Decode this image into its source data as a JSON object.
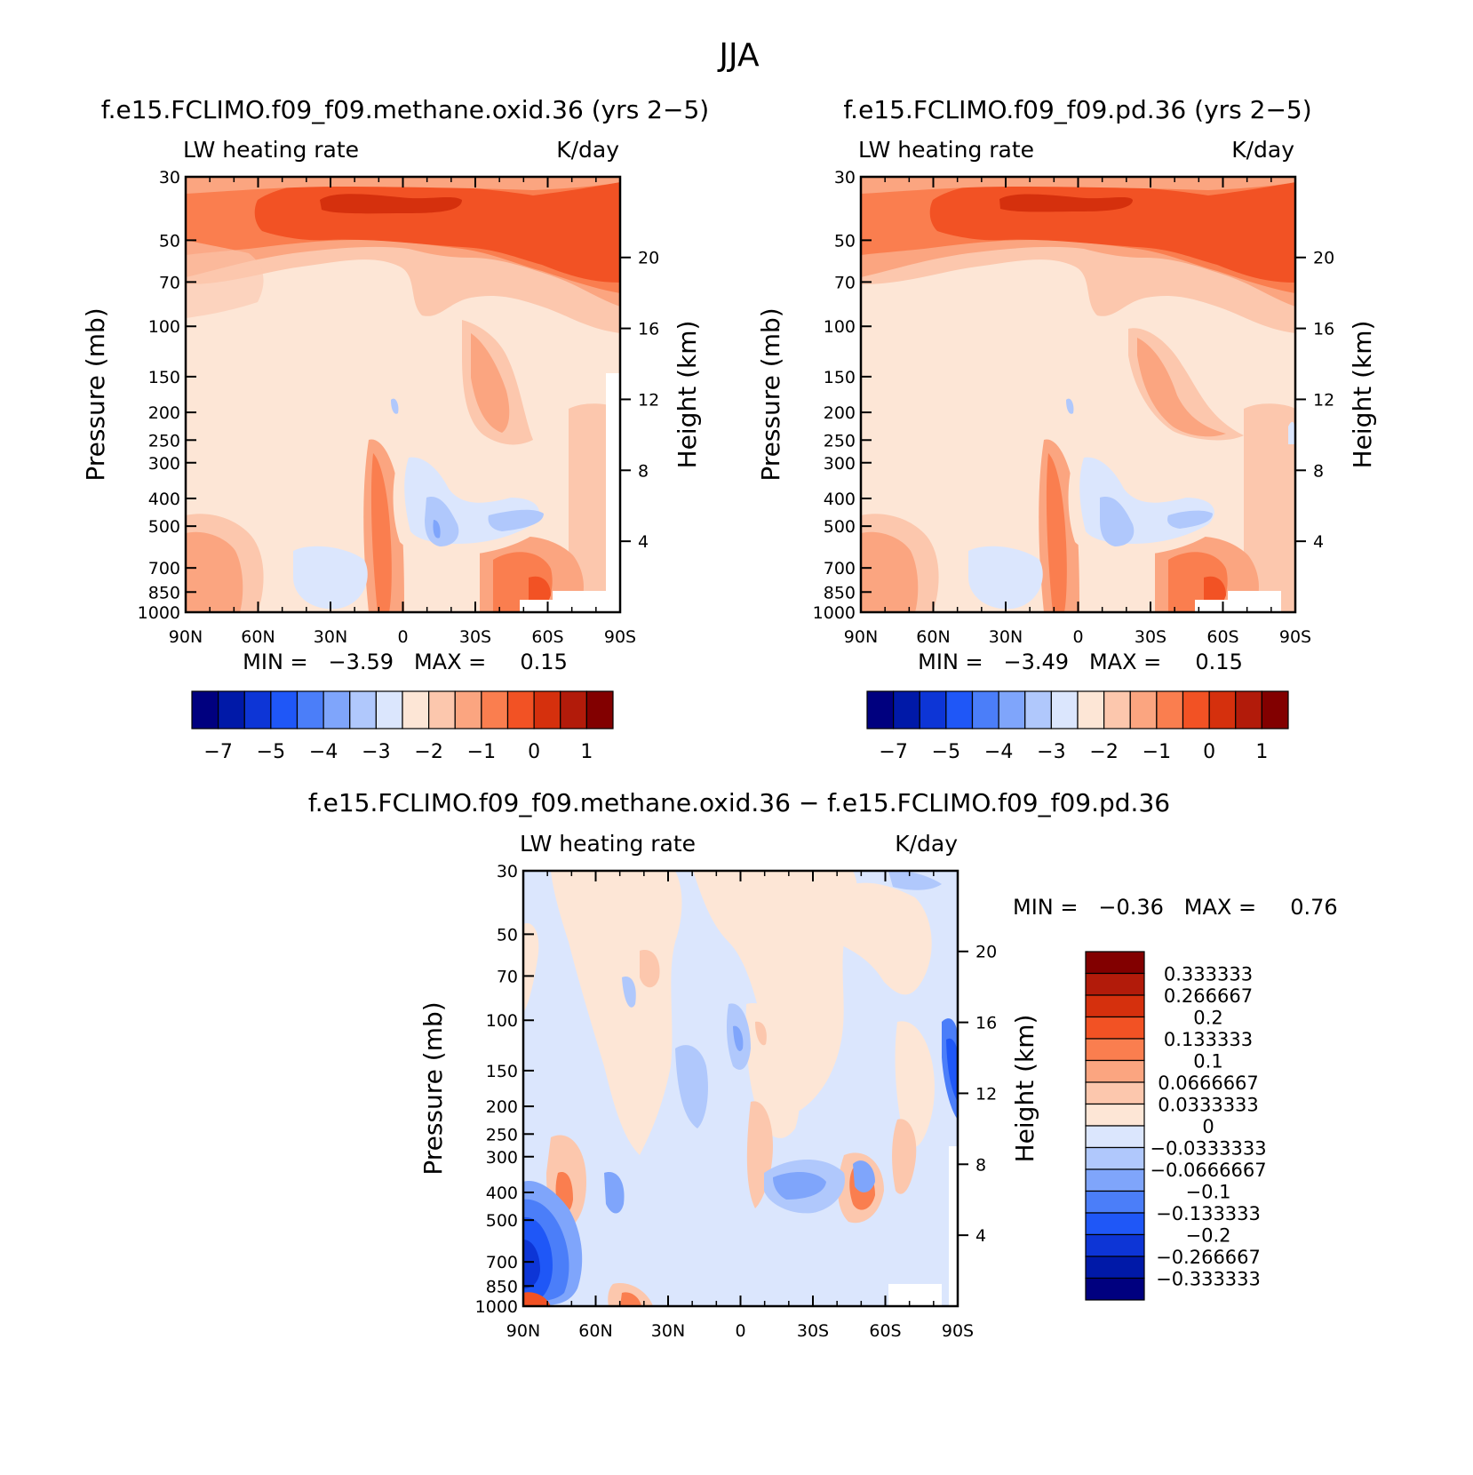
{
  "figure_title": "JJA",
  "chart_data": [
    {
      "type": "heatmap",
      "id": "p1",
      "title": "f.e15.FCLIMO.f09_f09.methane.oxid.36 (yrs 2-5)",
      "title_display": "f.e15.FCLIMO.f09_f09.methane.oxid.36 (yrs 2−5)",
      "variable": "LW heating rate",
      "units": "K/day",
      "xlabel": "",
      "ylabel": "Pressure (mb)",
      "y2label": "Height (km)",
      "x_ticks": [
        "90N",
        "60N",
        "30N",
        "0",
        "30S",
        "60S",
        "90S"
      ],
      "y_ticks": [
        30,
        50,
        70,
        100,
        150,
        200,
        250,
        300,
        400,
        500,
        700,
        850,
        1000
      ],
      "y2_ticks": [
        20,
        16,
        12,
        8,
        4
      ],
      "ylim": [
        1000,
        30
      ],
      "stats_text": "MIN =   −3.59   MAX =     0.15",
      "min": -3.59,
      "max": 0.15,
      "colorbar_labels": [
        "−7",
        "−5",
        "−4",
        "−3",
        "−2",
        "−1",
        "0",
        "1"
      ],
      "colorbar_colors": [
        "#00007f",
        "#0019a8",
        "#0d35d6",
        "#1f57f7",
        "#4b7ef9",
        "#7fa5fb",
        "#b0c8fc",
        "#dbe6fd",
        "#fde6d6",
        "#fcc7ad",
        "#fba580",
        "#fa7e4f",
        "#f25224",
        "#d5300d",
        "#b21b0a",
        "#820000"
      ]
    },
    {
      "type": "heatmap",
      "id": "p2",
      "title": "f.e15.FCLIMO.f09_f09.pd.36 (yrs 2-5)",
      "title_display": "f.e15.FCLIMO.f09_f09.pd.36 (yrs 2−5)",
      "variable": "LW heating rate",
      "units": "K/day",
      "ylabel": "Pressure (mb)",
      "y2label": "Height (km)",
      "x_ticks": [
        "90N",
        "60N",
        "30N",
        "0",
        "30S",
        "60S",
        "90S"
      ],
      "y_ticks": [
        30,
        50,
        70,
        100,
        150,
        200,
        250,
        300,
        400,
        500,
        700,
        850,
        1000
      ],
      "y2_ticks": [
        20,
        16,
        12,
        8,
        4
      ],
      "ylim": [
        1000,
        30
      ],
      "stats_text": "MIN =   −3.49   MAX =     0.15",
      "min": -3.49,
      "max": 0.15,
      "colorbar_labels": [
        "−7",
        "−5",
        "−4",
        "−3",
        "−2",
        "−1",
        "0",
        "1"
      ],
      "colorbar_colors": [
        "#00007f",
        "#0019a8",
        "#0d35d6",
        "#1f57f7",
        "#4b7ef9",
        "#7fa5fb",
        "#b0c8fc",
        "#dbe6fd",
        "#fde6d6",
        "#fcc7ad",
        "#fba580",
        "#fa7e4f",
        "#f25224",
        "#d5300d",
        "#b21b0a",
        "#820000"
      ]
    },
    {
      "type": "heatmap",
      "id": "p3",
      "title": "f.e15.FCLIMO.f09_f09.methane.oxid.36 - f.e15.FCLIMO.f09_f09.pd.36",
      "title_display": "f.e15.FCLIMO.f09_f09.methane.oxid.36 − f.e15.FCLIMO.f09_f09.pd.36",
      "variable": "LW heating rate",
      "units": "K/day",
      "ylabel": "Pressure (mb)",
      "y2label": "Height (km)",
      "x_ticks": [
        "90N",
        "60N",
        "30N",
        "0",
        "30S",
        "60S",
        "90S"
      ],
      "y_ticks": [
        30,
        50,
        70,
        100,
        150,
        200,
        250,
        300,
        400,
        500,
        700,
        850,
        1000
      ],
      "y2_ticks": [
        20,
        16,
        12,
        8,
        4
      ],
      "ylim": [
        1000,
        30
      ],
      "stats_text": "MIN =   −0.36   MAX =     0.76",
      "min": -0.36,
      "max": 0.76,
      "colorbar_labels": [
        "0.333333",
        "0.266667",
        "0.2",
        "0.133333",
        "0.1",
        "0.0666667",
        "0.0333333",
        "0",
        "−0.0333333",
        "−0.0666667",
        "−0.1",
        "−0.133333",
        "−0.2",
        "−0.266667",
        "−0.333333"
      ],
      "colorbar_colors": [
        "#820000",
        "#b21b0a",
        "#d5300d",
        "#f25224",
        "#fa7e4f",
        "#fba580",
        "#fcc7ad",
        "#fde6d6",
        "#dbe6fd",
        "#b0c8fc",
        "#7fa5fb",
        "#4b7ef9",
        "#1f57f7",
        "#0d35d6",
        "#0019a8",
        "#00007f"
      ]
    }
  ]
}
